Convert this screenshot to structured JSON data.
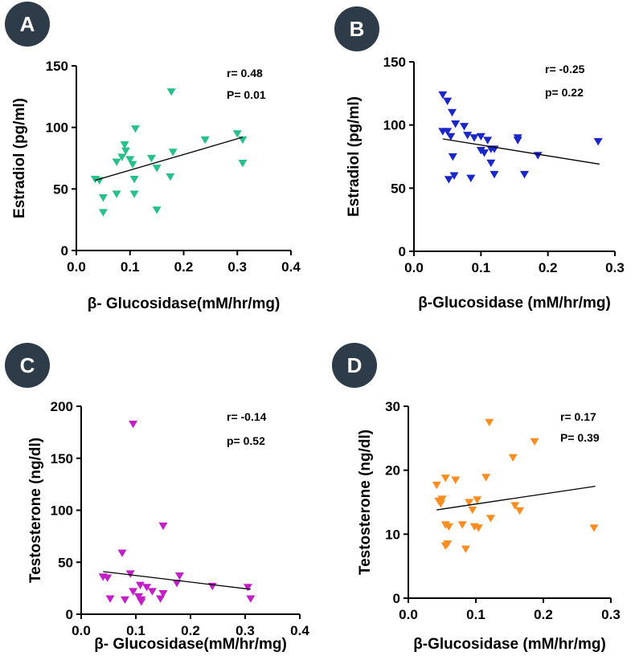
{
  "badge_color": "#2e3b48",
  "panels": [
    {
      "id": "A",
      "badge": "A",
      "marker_color": "#27c08a",
      "stats": {
        "r": "r= 0.48",
        "p": "P= 0.01"
      },
      "chart_data": {
        "type": "scatter",
        "title": "",
        "xlabel": "β- Glucosidase(mM/hr/mg)",
        "ylabel": "Estradiol (pg/ml)",
        "xlim": [
          0,
          0.4
        ],
        "ylim": [
          0,
          150
        ],
        "x_ticks": [
          0,
          0.1,
          0.2,
          0.3,
          0.4
        ],
        "x_tick_labels": [
          "0.0",
          "0.1",
          "0.2",
          "0.3",
          "0.4"
        ],
        "y_ticks": [
          0,
          50,
          100,
          150
        ],
        "y_tick_labels": [
          "0",
          "50",
          "100",
          "150"
        ],
        "points": [
          [
            0.035,
            58
          ],
          [
            0.043,
            57
          ],
          [
            0.05,
            43
          ],
          [
            0.05,
            31
          ],
          [
            0.075,
            72
          ],
          [
            0.075,
            46
          ],
          [
            0.085,
            76
          ],
          [
            0.09,
            86
          ],
          [
            0.092,
            81
          ],
          [
            0.1,
            74
          ],
          [
            0.105,
            70
          ],
          [
            0.108,
            58
          ],
          [
            0.108,
            46
          ],
          [
            0.11,
            99
          ],
          [
            0.14,
            75
          ],
          [
            0.15,
            67
          ],
          [
            0.15,
            33
          ],
          [
            0.175,
            60
          ],
          [
            0.177,
            129
          ],
          [
            0.18,
            80
          ],
          [
            0.24,
            90
          ],
          [
            0.3,
            95
          ],
          [
            0.31,
            90
          ],
          [
            0.31,
            71
          ]
        ],
        "regression": {
          "x": [
            0.035,
            0.31
          ],
          "y": [
            57,
            92
          ]
        }
      }
    },
    {
      "id": "B",
      "badge": "B",
      "marker_color": "#1a27c6",
      "stats": {
        "r": "r= -0.25",
        "p": "p= 0.22"
      },
      "chart_data": {
        "type": "scatter",
        "title": "",
        "xlabel": "β-Glucosidase (mM/hr/mg)",
        "ylabel": "Estradiol (pg/ml)",
        "xlim": [
          0,
          0.3
        ],
        "ylim": [
          0,
          150
        ],
        "x_ticks": [
          0,
          0.1,
          0.2,
          0.3
        ],
        "x_tick_labels": [
          "0.0",
          "0.1",
          "0.2",
          "0.3"
        ],
        "y_ticks": [
          0,
          50,
          100,
          150
        ],
        "y_tick_labels": [
          "0",
          "50",
          "100",
          "150"
        ],
        "points": [
          [
            0.043,
            124
          ],
          [
            0.05,
            119
          ],
          [
            0.057,
            110
          ],
          [
            0.062,
            101
          ],
          [
            0.043,
            95
          ],
          [
            0.05,
            95
          ],
          [
            0.055,
            91
          ],
          [
            0.075,
            99
          ],
          [
            0.08,
            92
          ],
          [
            0.09,
            90
          ],
          [
            0.1,
            91
          ],
          [
            0.11,
            88
          ],
          [
            0.115,
            81
          ],
          [
            0.1,
            80
          ],
          [
            0.105,
            78
          ],
          [
            0.12,
            81
          ],
          [
            0.155,
            90
          ],
          [
            0.155,
            88
          ],
          [
            0.185,
            76
          ],
          [
            0.275,
            87
          ],
          [
            0.058,
            75
          ],
          [
            0.06,
            60
          ],
          [
            0.052,
            57
          ],
          [
            0.085,
            58
          ],
          [
            0.115,
            70
          ],
          [
            0.12,
            61
          ],
          [
            0.165,
            61
          ]
        ],
        "regression": {
          "x": [
            0.043,
            0.277
          ],
          "y": [
            89,
            69
          ]
        }
      }
    },
    {
      "id": "C",
      "badge": "C",
      "marker_color": "#c21fc8",
      "stats": {
        "r": "r= -0.14",
        "p": "p= 0.52"
      },
      "chart_data": {
        "type": "scatter",
        "title": "",
        "xlabel": "β- Glucosidase(mM/hr/mg)",
        "ylabel": "Testosterone (ng/dl)",
        "xlim": [
          0,
          0.4
        ],
        "ylim": [
          0,
          200
        ],
        "x_ticks": [
          0,
          0.1,
          0.2,
          0.3,
          0.4
        ],
        "x_tick_labels": [
          "0.0",
          "0.1",
          "0.2",
          "0.3",
          "0.4"
        ],
        "y_ticks": [
          0,
          50,
          100,
          150,
          200
        ],
        "y_tick_labels": [
          "0",
          "50",
          "100",
          "150",
          "200"
        ],
        "points": [
          [
            0.04,
            36
          ],
          [
            0.048,
            35
          ],
          [
            0.053,
            15
          ],
          [
            0.075,
            59
          ],
          [
            0.08,
            14
          ],
          [
            0.09,
            39
          ],
          [
            0.095,
            183
          ],
          [
            0.095,
            22
          ],
          [
            0.105,
            17
          ],
          [
            0.108,
            28
          ],
          [
            0.11,
            14
          ],
          [
            0.11,
            12
          ],
          [
            0.13,
            22
          ],
          [
            0.15,
            85
          ],
          [
            0.15,
            20
          ],
          [
            0.145,
            15
          ],
          [
            0.175,
            30
          ],
          [
            0.18,
            37
          ],
          [
            0.24,
            27
          ],
          [
            0.305,
            26
          ],
          [
            0.31,
            15
          ],
          [
            0.12,
            26
          ]
        ],
        "regression": {
          "x": [
            0.04,
            0.31
          ],
          "y": [
            41,
            24
          ]
        }
      }
    },
    {
      "id": "D",
      "badge": "D",
      "marker_color": "#f98d22",
      "stats": {
        "r": "r= 0.17",
        "p": "P= 0.39"
      },
      "chart_data": {
        "type": "scatter",
        "title": "",
        "xlabel": "β-Glucosidase (mM/hr/mg)",
        "ylabel": "Testosterone (ng/dl)",
        "xlim": [
          0,
          0.3
        ],
        "ylim": [
          0,
          30
        ],
        "x_ticks": [
          0,
          0.1,
          0.2,
          0.3
        ],
        "x_tick_labels": [
          "0.0",
          "0.1",
          "0.2",
          "0.3"
        ],
        "y_ticks": [
          0,
          10,
          20,
          30
        ],
        "y_tick_labels": [
          "0",
          "10",
          "20",
          "30"
        ],
        "points": [
          [
            0.042,
            17.7
          ],
          [
            0.05,
            15.5
          ],
          [
            0.045,
            15.2
          ],
          [
            0.048,
            14.8
          ],
          [
            0.055,
            18.8
          ],
          [
            0.055,
            11.5
          ],
          [
            0.06,
            11.2
          ],
          [
            0.058,
            8.5
          ],
          [
            0.055,
            8.2
          ],
          [
            0.07,
            18.5
          ],
          [
            0.08,
            11.5
          ],
          [
            0.085,
            7.7
          ],
          [
            0.09,
            15.0
          ],
          [
            0.095,
            13.8
          ],
          [
            0.098,
            11.2
          ],
          [
            0.102,
            15.4
          ],
          [
            0.104,
            11.0
          ],
          [
            0.115,
            18.9
          ],
          [
            0.12,
            27.5
          ],
          [
            0.122,
            12.5
          ],
          [
            0.155,
            22.0
          ],
          [
            0.158,
            14.5
          ],
          [
            0.165,
            13.7
          ],
          [
            0.187,
            24.5
          ],
          [
            0.275,
            11.0
          ]
        ],
        "regression": {
          "x": [
            0.042,
            0.277
          ],
          "y": [
            13.8,
            17.5
          ]
        }
      }
    }
  ]
}
